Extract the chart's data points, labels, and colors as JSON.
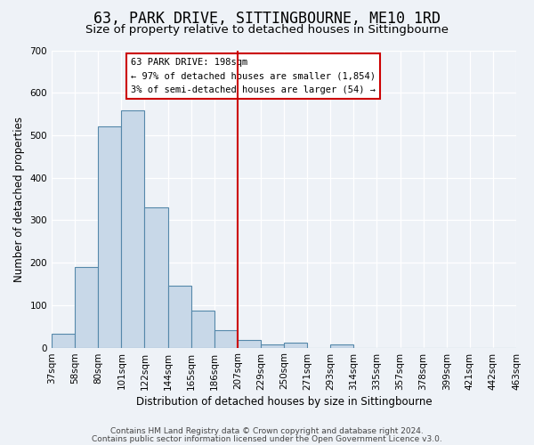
{
  "title": "63, PARK DRIVE, SITTINGBOURNE, ME10 1RD",
  "subtitle": "Size of property relative to detached houses in Sittingbourne",
  "xlabel": "Distribution of detached houses by size in Sittingbourne",
  "ylabel": "Number of detached properties",
  "bin_labels": [
    "37sqm",
    "58sqm",
    "80sqm",
    "101sqm",
    "122sqm",
    "144sqm",
    "165sqm",
    "186sqm",
    "207sqm",
    "229sqm",
    "250sqm",
    "271sqm",
    "293sqm",
    "314sqm",
    "335sqm",
    "357sqm",
    "378sqm",
    "399sqm",
    "421sqm",
    "442sqm",
    "463sqm"
  ],
  "bar_values": [
    33,
    190,
    520,
    558,
    330,
    145,
    87,
    42,
    18,
    7,
    12,
    0,
    8,
    0,
    0,
    0,
    0,
    0,
    0,
    0
  ],
  "bar_color": "#c8d8e8",
  "bar_edge_color": "#5588aa",
  "vline_x": 8.0,
  "vline_color": "#cc0000",
  "annotation_title": "63 PARK DRIVE: 198sqm",
  "annotation_line1": "← 97% of detached houses are smaller (1,854)",
  "annotation_line2": "3% of semi-detached houses are larger (54) →",
  "annotation_box_color": "#cc0000",
  "ylim": [
    0,
    700
  ],
  "yticks": [
    0,
    100,
    200,
    300,
    400,
    500,
    600,
    700
  ],
  "footer1": "Contains HM Land Registry data © Crown copyright and database right 2024.",
  "footer2": "Contains public sector information licensed under the Open Government Licence v3.0.",
  "bg_color": "#eef2f7",
  "grid_color": "#ffffff",
  "title_fontsize": 12,
  "subtitle_fontsize": 9.5,
  "axis_fontsize": 8.5,
  "tick_fontsize": 7.5,
  "footer_fontsize": 6.5
}
